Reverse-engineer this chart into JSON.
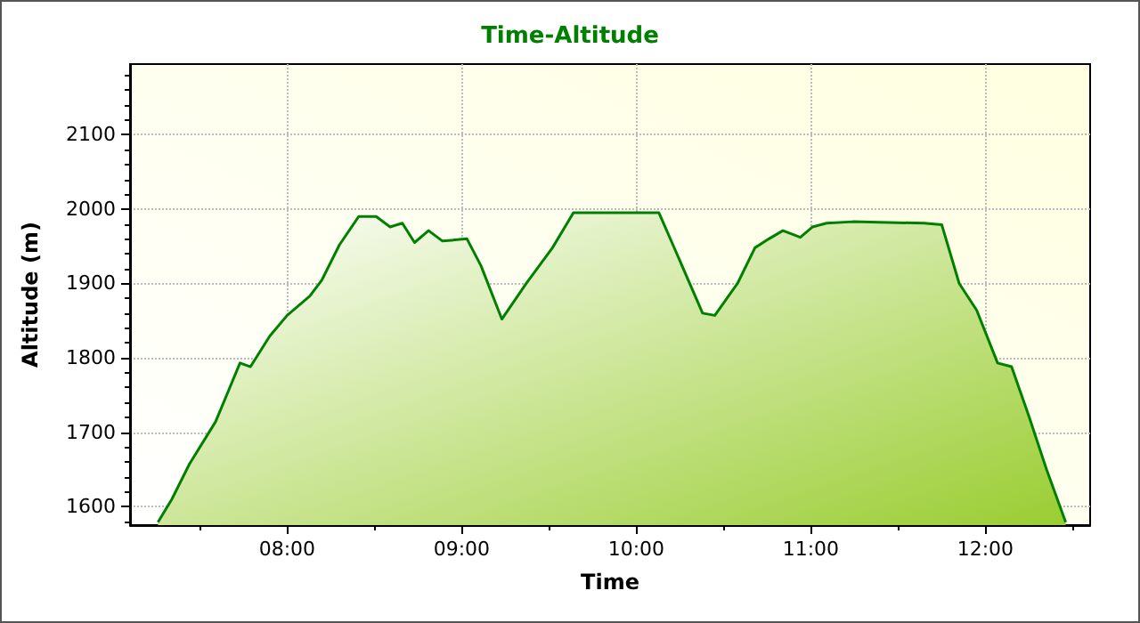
{
  "chart_data": {
    "type": "area",
    "title": "Time-Altitude",
    "xlabel": "Time",
    "ylabel": "Altitude (m)",
    "xlim": [
      7.1,
      12.6
    ],
    "ylim": [
      1575,
      2195
    ],
    "xticks": [
      {
        "value": 8,
        "label": "08:00"
      },
      {
        "value": 9,
        "label": "09:00"
      },
      {
        "value": 10,
        "label": "10:00"
      },
      {
        "value": 11,
        "label": "11:00"
      },
      {
        "value": 12,
        "label": "12:00"
      }
    ],
    "yticks": [
      1600,
      1700,
      1800,
      1900,
      2000,
      2100
    ],
    "grid": true,
    "marker": "none",
    "line_style": "solid",
    "series": [
      {
        "color": "#008000",
        "x": [
          7.26,
          7.34,
          7.44,
          7.59,
          7.73,
          7.79,
          7.9,
          8.0,
          8.13,
          8.2,
          8.3,
          8.41,
          8.51,
          8.59,
          8.66,
          8.73,
          8.81,
          8.89,
          9.03,
          9.11,
          9.23,
          9.37,
          9.52,
          9.64,
          10.13,
          10.21,
          10.38,
          10.45,
          10.58,
          10.68,
          10.76,
          10.84,
          10.94,
          11.01,
          11.09,
          11.24,
          11.65,
          11.75,
          11.85,
          11.95,
          12.07,
          12.15,
          12.25,
          12.35,
          12.46
        ],
        "values": [
          1579,
          1610,
          1657,
          1714,
          1793,
          1788,
          1829,
          1857,
          1883,
          1905,
          1952,
          1990,
          1990,
          1976,
          1981,
          1955,
          1971,
          1957,
          1960,
          1924,
          1852,
          1900,
          1948,
          1995,
          1995,
          1952,
          1860,
          1857,
          1900,
          1948,
          1960,
          1971,
          1962,
          1976,
          1981,
          1983,
          1981,
          1979,
          1900,
          1864,
          1793,
          1788,
          1721,
          1650,
          1579
        ]
      }
    ]
  }
}
